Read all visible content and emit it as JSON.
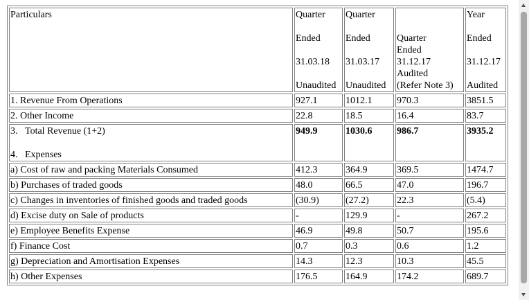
{
  "headers": {
    "particulars": "Particulars",
    "col1": [
      "Quarter",
      "Ended",
      "31.03.18",
      "Unaudited"
    ],
    "col2": [
      "Quarter",
      "Ended",
      "31.03.17",
      "Unaudited"
    ],
    "col3": [
      "Quarter",
      "Ended",
      "31.12.17",
      "Audited",
      "(Refer Note 3)"
    ],
    "col4": [
      "Year",
      "Ended",
      "31.12.17",
      "Audited"
    ]
  },
  "rows": [
    {
      "label": "1. Revenue From Operations",
      "values": [
        "927.1",
        "1012.1",
        "970.3",
        "3851.5"
      ]
    },
    {
      "label": "2. Other Income",
      "values": [
        "22.8",
        "18.5",
        "16.4",
        "83.7"
      ]
    },
    {
      "label": "3.   Total Revenue (1+2)",
      "label2": "4.   Expenses",
      "values": [
        "949.9",
        "1030.6",
        "986.7",
        "3935.2"
      ]
    },
    {
      "label": "a) Cost of raw and packing Materials Consumed",
      "values": [
        "412.3",
        "364.9",
        "369.5",
        "1474.7"
      ]
    },
    {
      "label": "b) Purchases of traded goods",
      "values": [
        "48.0",
        "66.5",
        "47.0",
        "196.7"
      ]
    },
    {
      "label": "c) Changes in inventories of finished goods and traded goods",
      "values": [
        "(30.9)",
        "(27.2)",
        "22.3",
        "(5.4)"
      ]
    },
    {
      "label": "d) Excise duty on Sale of products",
      "values": [
        "-",
        "129.9",
        "-",
        "267.2"
      ]
    },
    {
      "label": "e) Employee Benefits Expense",
      "values": [
        "46.9",
        "49.8",
        "50.7",
        "195.6"
      ]
    },
    {
      "label": "f) Finance Cost",
      "values": [
        "0.7",
        "0.3",
        "0.6",
        "1.2"
      ]
    },
    {
      "label": "g) Depreciation and Amortisation Expenses",
      "values": [
        "14.3",
        "12.3",
        "10.3",
        "45.5"
      ]
    },
    {
      "label": "h) Other Expenses",
      "values": [
        "176.5",
        "164.9",
        "174.2",
        "689.7"
      ]
    }
  ],
  "scrollbar": {
    "up_icon": "triangle-up-icon",
    "down_icon": "triangle-down-icon"
  }
}
